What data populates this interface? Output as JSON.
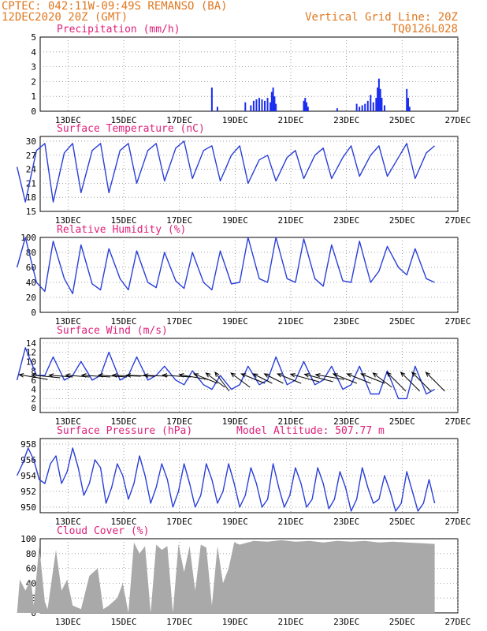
{
  "header": {
    "line1": "CPTEC:  042:11W-09:49S  REMANSO (BA)",
    "line2": "12DEC2020 20Z (GMT)",
    "grid_note": "Vertical Grid Line: 20Z",
    "code": "TQ0126L028"
  },
  "colors": {
    "header": "#e07820",
    "title": "#e0207a",
    "line": "#2a3fd8",
    "bar": "#1a2cf0",
    "cloud": "#a9a9a9",
    "arrow": "#000000"
  },
  "chart_data": [
    {
      "id": "precip",
      "type": "bar",
      "title": "Precipitation (mm/h)",
      "ylim": [
        0,
        5
      ],
      "yticks": [
        0,
        1,
        2,
        3,
        4,
        5
      ],
      "x_ticks": [
        "13DEC",
        "15DEC",
        "17DEC",
        "19DEC",
        "21DEC",
        "23DEC",
        "25DEC",
        "27DEC"
      ],
      "x_day": [
        19.0,
        19.2,
        20.2,
        20.4,
        20.5,
        20.6,
        20.7,
        20.8,
        20.9,
        21.0,
        21.1,
        21.15,
        21.2,
        21.25,
        21.3,
        22.3,
        22.35,
        22.4,
        22.45,
        23.5,
        24.2,
        24.3,
        24.4,
        24.5,
        24.6,
        24.7,
        24.8,
        24.9,
        24.95,
        25.0,
        25.05,
        25.1,
        25.2,
        26.0,
        26.05,
        26.1
      ],
      "values": [
        1.6,
        0.3,
        0.6,
        0.4,
        0.7,
        0.8,
        0.9,
        0.8,
        0.7,
        0.9,
        0.6,
        1.3,
        1.6,
        1.0,
        0.5,
        0.7,
        0.9,
        0.6,
        0.3,
        0.2,
        0.5,
        0.3,
        0.4,
        0.5,
        0.7,
        1.1,
        0.6,
        0.9,
        1.6,
        2.2,
        1.5,
        0.9,
        0.4,
        1.5,
        0.9,
        0.3
      ]
    },
    {
      "id": "temp",
      "type": "line",
      "title": "Surface Temperature (nC)",
      "ylim": [
        15,
        31
      ],
      "yticks": [
        15,
        18,
        21,
        24,
        27,
        30
      ],
      "x_ticks": [
        "13DEC",
        "15DEC",
        "17DEC",
        "19DEC",
        "21DEC",
        "23DEC",
        "25DEC",
        "27DEC"
      ],
      "series": [
        {
          "x_day": [
            12.0,
            12.3,
            12.7,
            13.0,
            13.3,
            13.7,
            14.0,
            14.3,
            14.7,
            15.0,
            15.3,
            15.7,
            16.0,
            16.3,
            16.7,
            17.0,
            17.3,
            17.7,
            18.0,
            18.3,
            18.7,
            19.0,
            19.3,
            19.7,
            20.0,
            20.3,
            20.7,
            21.0,
            21.3,
            21.7,
            22.0,
            22.3,
            22.7,
            23.0,
            23.3,
            23.7,
            24.0,
            24.3,
            24.7,
            25.0,
            25.3,
            25.7,
            26.0,
            26.3,
            26.7,
            27.0
          ],
          "values": [
            24.5,
            17.0,
            28.0,
            29.5,
            17.0,
            27.5,
            29.5,
            19.0,
            28.0,
            29.5,
            19.0,
            28.0,
            29.5,
            21.0,
            28.0,
            29.5,
            21.5,
            28.5,
            30.0,
            22.0,
            28.0,
            29.0,
            21.5,
            27.0,
            29.0,
            21.0,
            26.0,
            27.0,
            21.5,
            26.5,
            28.0,
            22.0,
            27.0,
            28.5,
            22.0,
            26.5,
            29.0,
            22.5,
            27.0,
            29.0,
            22.5,
            26.5,
            29.5,
            22.0,
            27.5,
            29.0
          ]
        }
      ]
    },
    {
      "id": "rh",
      "type": "line",
      "title": "Relative Humidity (%)",
      "ylim": [
        0,
        100
      ],
      "yticks": [
        0,
        20,
        40,
        60,
        80,
        100
      ],
      "x_ticks": [
        "13DEC",
        "15DEC",
        "17DEC",
        "19DEC",
        "21DEC",
        "23DEC",
        "25DEC",
        "27DEC"
      ],
      "series": [
        {
          "x_day": [
            12.0,
            12.3,
            12.7,
            13.0,
            13.3,
            13.7,
            14.0,
            14.3,
            14.7,
            15.0,
            15.3,
            15.7,
            16.0,
            16.3,
            16.7,
            17.0,
            17.3,
            17.7,
            18.0,
            18.3,
            18.7,
            19.0,
            19.3,
            19.7,
            20.0,
            20.3,
            20.7,
            21.0,
            21.3,
            21.7,
            22.0,
            22.3,
            22.7,
            23.0,
            23.3,
            23.7,
            24.0,
            24.3,
            24.7,
            25.0,
            25.3,
            25.7,
            26.0,
            26.3,
            26.7,
            27.0
          ],
          "values": [
            60,
            100,
            40,
            28,
            95,
            45,
            25,
            90,
            38,
            30,
            85,
            45,
            30,
            82,
            40,
            33,
            80,
            42,
            32,
            80,
            40,
            30,
            82,
            38,
            40,
            100,
            45,
            40,
            100,
            45,
            40,
            98,
            45,
            35,
            90,
            42,
            40,
            95,
            40,
            55,
            88,
            60,
            50,
            85,
            45,
            40
          ]
        }
      ]
    },
    {
      "id": "wind",
      "type": "line",
      "title": "Surface Wind (m/s)",
      "ylim": [
        -1,
        15
      ],
      "yticks": [
        0,
        2,
        4,
        6,
        8,
        10,
        12,
        14
      ],
      "x_ticks": [
        "13DEC",
        "15DEC",
        "17DEC",
        "19DEC",
        "21DEC",
        "23DEC",
        "25DEC",
        "27DEC"
      ],
      "series": [
        {
          "x_day": [
            12.0,
            12.3,
            12.7,
            13.0,
            13.3,
            13.7,
            14.0,
            14.3,
            14.7,
            15.0,
            15.3,
            15.7,
            16.0,
            16.3,
            16.7,
            17.0,
            17.3,
            17.7,
            18.0,
            18.3,
            18.7,
            19.0,
            19.3,
            19.7,
            20.0,
            20.3,
            20.7,
            21.0,
            21.3,
            21.7,
            22.0,
            22.3,
            22.7,
            23.0,
            23.3,
            23.7,
            24.0,
            24.3,
            24.7,
            25.0,
            25.3,
            25.7,
            26.0,
            26.3,
            26.7,
            27.0
          ],
          "values": [
            6,
            13,
            7,
            7,
            11,
            6,
            7,
            10,
            6,
            7,
            12,
            6,
            7,
            11,
            6,
            7,
            9,
            6,
            5,
            8,
            5,
            4,
            7,
            4,
            5,
            9,
            5,
            6,
            11,
            5,
            6,
            10,
            5,
            6,
            9,
            4,
            5,
            9,
            3,
            3,
            8,
            2,
            2,
            9,
            3,
            4
          ]
        }
      ],
      "vectors": {
        "x_day": [
          12.25,
          12.7,
          13.3,
          13.9,
          14.5,
          15.1,
          15.6,
          16.1,
          16.7,
          17.4,
          18.0,
          18.5,
          18.9,
          19.2,
          19.8,
          20.2,
          20.6,
          21.0,
          21.5,
          22.0,
          22.5,
          22.9,
          23.5,
          24.0,
          24.5,
          24.9,
          25.4,
          25.9,
          26.3,
          26.8
        ],
        "u": [
          3,
          3,
          2.5,
          2.5,
          3,
          3,
          3,
          3,
          2.5,
          3,
          3,
          2.5,
          2,
          1.5,
          2,
          2.5,
          2,
          2,
          2.5,
          3,
          3,
          3,
          2.5,
          2.5,
          2.5,
          2,
          2,
          2,
          2,
          2
        ],
        "v": [
          -0.5,
          -0.3,
          -0.2,
          -0.2,
          -0.2,
          -0.2,
          -0.1,
          -0.1,
          -0.1,
          -0.2,
          -0.5,
          -1,
          -1.5,
          -2,
          -1.5,
          -1,
          -1,
          -1,
          -1,
          -0.8,
          -0.8,
          -0.5,
          -1,
          -1,
          -1,
          -1.5,
          -2,
          -2,
          -2,
          -2
        ]
      }
    },
    {
      "id": "pressure",
      "type": "line",
      "title": "Surface Pressure (hPa)",
      "annotation": "Model Altitude: 507.77 m",
      "ylim": [
        949.3,
        958.7
      ],
      "yticks": [
        950,
        952,
        954,
        956,
        958
      ],
      "x_ticks": [
        "13DEC",
        "15DEC",
        "17DEC",
        "19DEC",
        "21DEC",
        "23DEC",
        "25DEC",
        "27DEC"
      ],
      "series": [
        {
          "x_day": [
            12.0,
            12.2,
            12.4,
            12.6,
            12.8,
            13.0,
            13.2,
            13.4,
            13.6,
            13.8,
            14.0,
            14.2,
            14.4,
            14.6,
            14.8,
            15.0,
            15.2,
            15.4,
            15.6,
            15.8,
            16.0,
            16.2,
            16.4,
            16.6,
            16.8,
            17.0,
            17.2,
            17.4,
            17.6,
            17.8,
            18.0,
            18.2,
            18.4,
            18.6,
            18.8,
            19.0,
            19.2,
            19.4,
            19.6,
            19.8,
            20.0,
            20.2,
            20.4,
            20.6,
            20.8,
            21.0,
            21.2,
            21.4,
            21.6,
            21.8,
            22.0,
            22.2,
            22.4,
            22.6,
            22.8,
            23.0,
            23.2,
            23.4,
            23.6,
            23.8,
            24.0,
            24.2,
            24.4,
            24.6,
            24.8,
            25.0,
            25.2,
            25.4,
            25.6,
            25.8,
            26.0,
            26.2,
            26.4,
            26.6,
            26.8,
            27.0
          ],
          "values": [
            954.0,
            955.5,
            957.5,
            956.0,
            953.5,
            953.0,
            955.5,
            956.5,
            953.0,
            954.5,
            957.5,
            955.0,
            951.5,
            953.0,
            956.0,
            955.0,
            950.5,
            952.5,
            955.5,
            954.0,
            951.0,
            953.0,
            956.5,
            954.0,
            950.5,
            952.5,
            955.5,
            953.5,
            950.0,
            952.0,
            955.5,
            953.0,
            950.0,
            951.5,
            955.5,
            953.5,
            950.5,
            952.0,
            955.5,
            953.0,
            950.0,
            951.5,
            955.0,
            953.0,
            950.0,
            951.0,
            955.5,
            952.5,
            950.0,
            951.5,
            955.0,
            953.0,
            950.0,
            951.0,
            955.0,
            953.0,
            949.8,
            951.0,
            954.5,
            952.5,
            949.5,
            951.0,
            955.0,
            952.5,
            950.5,
            951.0,
            954.0,
            952.0,
            949.5,
            950.5,
            954.5,
            952.0,
            949.5,
            950.5,
            953.5,
            950.5
          ]
        }
      ]
    },
    {
      "id": "cloud",
      "type": "area",
      "title": "Cloud Cover (%)",
      "ylim": [
        0,
        100
      ],
      "yticks": [
        0,
        20,
        40,
        60,
        80,
        100
      ],
      "x_ticks": [
        "13DEC",
        "15DEC",
        "17DEC",
        "19DEC",
        "21DEC",
        "23DEC",
        "25DEC",
        "27DEC"
      ],
      "series": [
        {
          "x_day": [
            12.0,
            12.1,
            12.3,
            12.5,
            12.6,
            12.8,
            13.0,
            13.1,
            13.4,
            13.6,
            13.8,
            14.0,
            14.3,
            14.6,
            14.9,
            15.1,
            15.3,
            15.6,
            15.8,
            16.0,
            16.2,
            16.4,
            16.6,
            16.8,
            17.0,
            17.2,
            17.4,
            17.6,
            17.8,
            18.0,
            18.2,
            18.4,
            18.6,
            18.8,
            19.0,
            19.2,
            19.4,
            19.6,
            19.8,
            20.0,
            20.5,
            21.0,
            21.5,
            22.0,
            22.5,
            23.0,
            23.5,
            24.0,
            24.5,
            25.0,
            25.5,
            26.0,
            26.5,
            27.0
          ],
          "values": [
            0,
            45,
            30,
            45,
            10,
            90,
            15,
            5,
            85,
            30,
            45,
            10,
            5,
            50,
            60,
            5,
            10,
            20,
            40,
            0,
            95,
            80,
            90,
            0,
            92,
            85,
            90,
            0,
            93,
            55,
            90,
            30,
            92,
            88,
            10,
            90,
            40,
            60,
            95,
            92,
            97,
            96,
            98,
            96,
            97,
            95,
            97,
            96,
            97,
            95,
            96,
            95,
            94,
            93
          ]
        }
      ]
    }
  ]
}
